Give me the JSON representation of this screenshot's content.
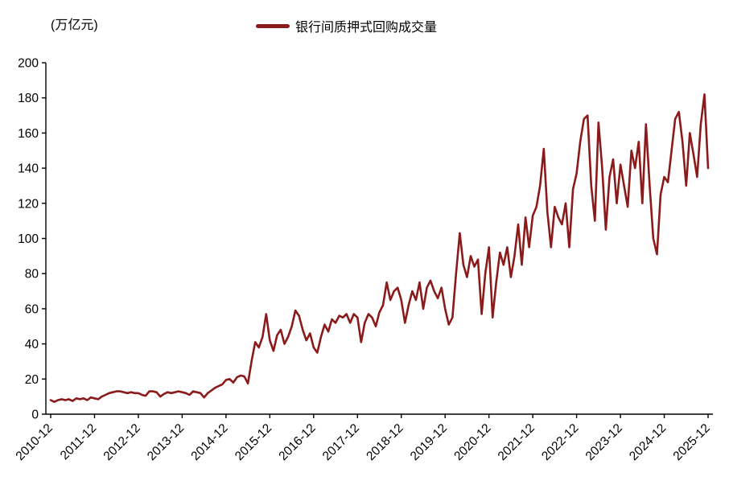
{
  "chart": {
    "unit_label": "(万亿元)",
    "legend": {
      "label": "银行间质押式回购成交量",
      "color": "#8B1A1A"
    }
  },
  "chart_data": {
    "type": "line",
    "title": "",
    "ylabel_unit": "万亿元",
    "series_name": "银行间质押式回购成交量",
    "line_color": "#8B1A1A",
    "grid": false,
    "legend_position": "top-center",
    "x_frequency": "monthly",
    "x_start": "2010-12",
    "x_end": "2025-12",
    "x_tick_labels": [
      "2010-12",
      "2011-12",
      "2012-12",
      "2013-12",
      "2014-12",
      "2015-12",
      "2016-12",
      "2017-12",
      "2018-12",
      "2019-12",
      "2020-12",
      "2021-12",
      "2022-12",
      "2023-12",
      "2024-12",
      "2025-12"
    ],
    "y_ticks": [
      0,
      20,
      40,
      60,
      80,
      100,
      120,
      140,
      160,
      180,
      200
    ],
    "ylim": [
      0,
      200
    ],
    "values": [
      8,
      7,
      8,
      8.5,
      8,
      8.5,
      7.5,
      9,
      8.5,
      9,
      8,
      9.5,
      9,
      8.5,
      10,
      11,
      12,
      12.5,
      13,
      13,
      12.5,
      12,
      12.5,
      12,
      12,
      11,
      10.5,
      13,
      13,
      12.5,
      10,
      11.5,
      12.5,
      12,
      12.5,
      13,
      12.5,
      12,
      11,
      13,
      12.5,
      12,
      9.5,
      12,
      13.5,
      15,
      16,
      17,
      19.5,
      20,
      18,
      21,
      22,
      21.5,
      17.5,
      30,
      41,
      38,
      44,
      57,
      42,
      36,
      45,
      48,
      40,
      44,
      50,
      59,
      56,
      48,
      42,
      46,
      38,
      35,
      44,
      51,
      47,
      54,
      52,
      56,
      55,
      57,
      52,
      57,
      55,
      41,
      52,
      57,
      55,
      50,
      58,
      62,
      75,
      65,
      70,
      72,
      65,
      52,
      62,
      70,
      65,
      75,
      60,
      72,
      76,
      70,
      66,
      72,
      60,
      51,
      55,
      80,
      103,
      85,
      78,
      90,
      84,
      88,
      57,
      80,
      95,
      55,
      75,
      92,
      85,
      95,
      78,
      90,
      108,
      85,
      112,
      95,
      113,
      118,
      130,
      151,
      115,
      95,
      118,
      112,
      108,
      120,
      95,
      128,
      137,
      155,
      168,
      170,
      130,
      110,
      166,
      140,
      105,
      135,
      145,
      120,
      142,
      130,
      118,
      150,
      140,
      155,
      120,
      165,
      130,
      100,
      91,
      125,
      135,
      132,
      150,
      168,
      172,
      155,
      130,
      160,
      148,
      135,
      165,
      182,
      140
    ]
  }
}
